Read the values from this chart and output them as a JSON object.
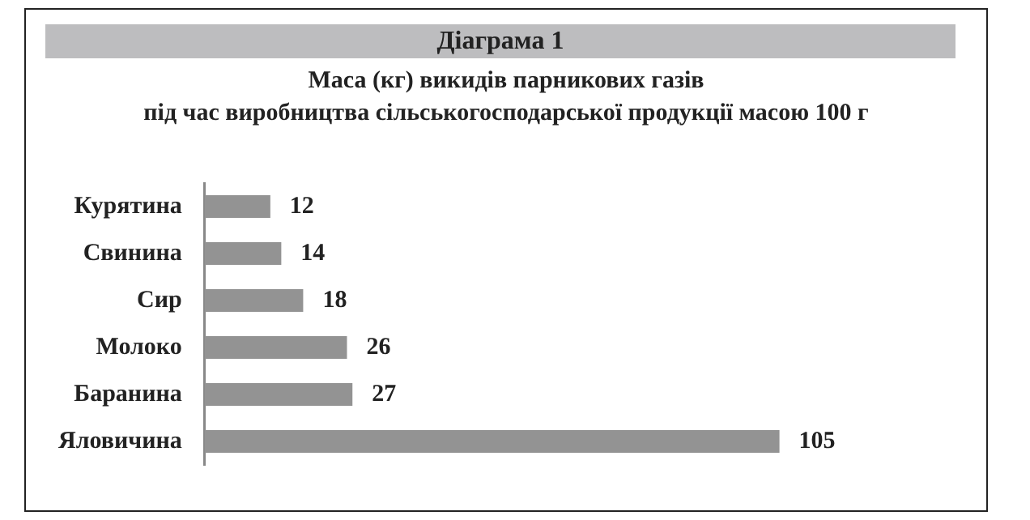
{
  "chart_data": {
    "type": "bar",
    "title": "Діаграма 1",
    "subtitle": "Маса (кг) викидів парникових газів\nпід час виробництва сільськогосподарської продукції масою 100 г",
    "orientation": "horizontal",
    "categories": [
      "Курятина",
      "Свинина",
      "Сир",
      "Молоко",
      "Баранина",
      "Яловичина"
    ],
    "values": [
      12,
      14,
      18,
      26,
      27,
      105
    ],
    "color": "#939393",
    "data_labels": true,
    "tick_labels": "y"
  }
}
